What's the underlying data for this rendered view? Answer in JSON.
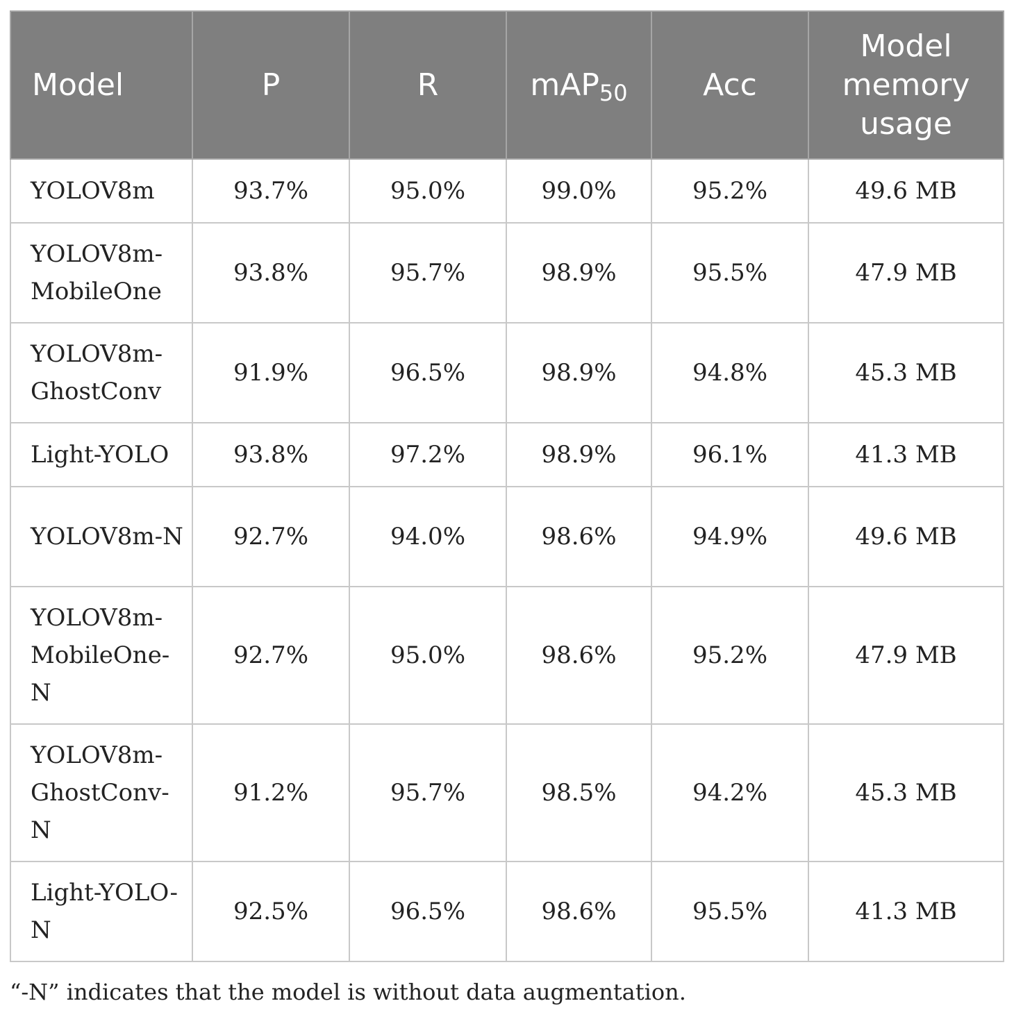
{
  "table": {
    "headers": {
      "model": "Model",
      "p": "P",
      "r": "R",
      "map_base": "mAP",
      "map_sub": "50",
      "acc": "Acc",
      "memory": "Model memory usage"
    },
    "rows": [
      {
        "model": "YOLOV8m",
        "p": "93.7%",
        "r": "95.0%",
        "map50": "99.0%",
        "acc": "95.2%",
        "memory": "49.6 MB"
      },
      {
        "model": "YOLOV8m-MobileOne",
        "p": "93.8%",
        "r": "95.7%",
        "map50": "98.9%",
        "acc": "95.5%",
        "memory": "47.9 MB"
      },
      {
        "model": "YOLOV8m-GhostConv",
        "p": "91.9%",
        "r": "96.5%",
        "map50": "98.9%",
        "acc": "94.8%",
        "memory": "45.3 MB"
      },
      {
        "model": "Light-YOLO",
        "p": "93.8%",
        "r": "97.2%",
        "map50": "98.9%",
        "acc": "96.1%",
        "memory": "41.3 MB"
      },
      {
        "model": "YOLOV8m-N",
        "p": "92.7%",
        "r": "94.0%",
        "map50": "98.6%",
        "acc": "94.9%",
        "memory": "49.6 MB"
      },
      {
        "model": "YOLOV8m-MobileOne-N",
        "p": "92.7%",
        "r": "95.0%",
        "map50": "98.6%",
        "acc": "95.2%",
        "memory": "47.9 MB"
      },
      {
        "model": "YOLOV8m-GhostConv-N",
        "p": "91.2%",
        "r": "95.7%",
        "map50": "98.5%",
        "acc": "94.2%",
        "memory": "45.3 MB"
      },
      {
        "model": "Light-YOLO-N",
        "p": "92.5%",
        "r": "96.5%",
        "map50": "98.6%",
        "acc": "95.5%",
        "memory": "41.3 MB"
      }
    ]
  },
  "footnote": "“-N” indicates that the model is without data augmentation."
}
